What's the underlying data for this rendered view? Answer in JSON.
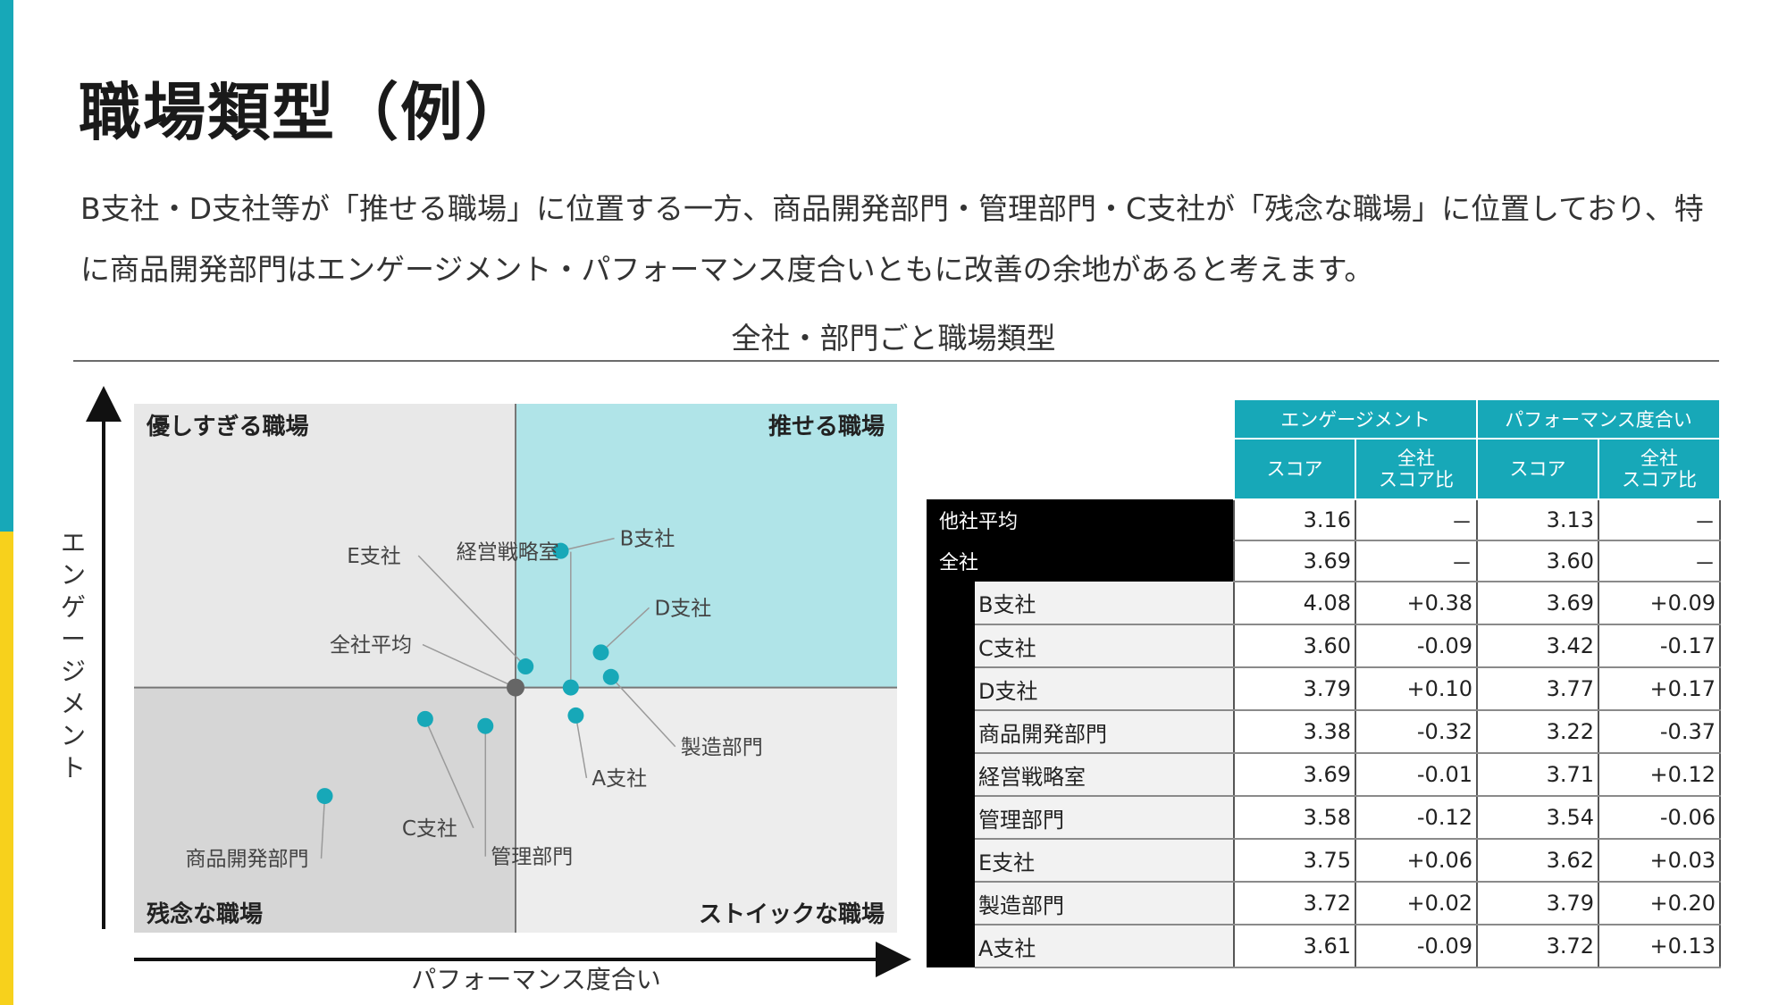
{
  "slide": {
    "title": "職場類型（例）",
    "description_line1": "B支社・D支社等が「推せる職場」に位置する一方、商品開発部門・管理部門・C支社が「残念な職場」に位置しており、特",
    "description_line2": "に商品開発部門はエンゲージメント・パフォーマンス度合いともに改善の余地があると考えます。",
    "section_title": "全社・部門ごと職場類型",
    "accent_colors": {
      "teal": "#17a8b8",
      "yellow": "#f7d11c"
    }
  },
  "chart_data": {
    "type": "scatter",
    "title": "",
    "xlabel": "パフォーマンス度合い",
    "ylabel": "エンゲージメント",
    "ylabel_chars": [
      "エ",
      "ン",
      "ゲ",
      "ー",
      "ジ",
      "メ",
      "ン",
      "ト"
    ],
    "xlim": [
      2.84,
      4.36
    ],
    "ylim": [
      2.99,
      4.5
    ],
    "center": {
      "x": 3.6,
      "y": 3.69
    },
    "quadrants": {
      "top_left": "優しすぎる職場",
      "top_right": "推せる職場",
      "bottom_left": "残念な職場",
      "bottom_right": "ストイックな職場"
    },
    "quadrant_colors": {
      "top_left": "#e8e8e8",
      "top_right": "#b0e4e8",
      "bottom_left": "#d6d6d6",
      "bottom_right": "#ededed"
    },
    "point_color": "#17a8b8",
    "center_color": "#666666",
    "points": [
      {
        "name": "全社平均",
        "x": 3.6,
        "y": 3.69,
        "center": true
      },
      {
        "name": "B支社",
        "x": 3.69,
        "y": 4.08
      },
      {
        "name": "D支社",
        "x": 3.77,
        "y": 3.79
      },
      {
        "name": "C支社",
        "x": 3.42,
        "y": 3.6
      },
      {
        "name": "商品開発部門",
        "x": 3.22,
        "y": 3.38
      },
      {
        "name": "経営戦略室",
        "x": 3.71,
        "y": 3.69
      },
      {
        "name": "管理部門",
        "x": 3.54,
        "y": 3.58
      },
      {
        "name": "E支社",
        "x": 3.62,
        "y": 3.75
      },
      {
        "name": "製造部門",
        "x": 3.79,
        "y": 3.72
      },
      {
        "name": "A支社",
        "x": 3.72,
        "y": 3.61
      }
    ]
  },
  "table": {
    "group_headers": [
      "エンゲージメント",
      "パフォーマンス度合い"
    ],
    "sub_headers": [
      {
        "line1": "スコア",
        "line2": ""
      },
      {
        "line1": "全社",
        "line2": "スコア比"
      },
      {
        "line1": "スコア",
        "line2": ""
      },
      {
        "line1": "全社",
        "line2": "スコア比"
      }
    ],
    "top_rows": [
      {
        "label": "他社平均",
        "values": [
          "3.16",
          "－",
          "3.13",
          "－"
        ]
      },
      {
        "label": "全社",
        "values": [
          "3.69",
          "－",
          "3.60",
          "－"
        ]
      }
    ],
    "rows": [
      {
        "label": "B支社",
        "values": [
          "4.08",
          "+0.38",
          "3.69",
          "+0.09"
        ]
      },
      {
        "label": "C支社",
        "values": [
          "3.60",
          "-0.09",
          "3.42",
          "-0.17"
        ]
      },
      {
        "label": "D支社",
        "values": [
          "3.79",
          "+0.10",
          "3.77",
          "+0.17"
        ]
      },
      {
        "label": "商品開発部門",
        "values": [
          "3.38",
          "-0.32",
          "3.22",
          "-0.37"
        ]
      },
      {
        "label": "経営戦略室",
        "values": [
          "3.69",
          "-0.01",
          "3.71",
          "+0.12"
        ]
      },
      {
        "label": "管理部門",
        "values": [
          "3.58",
          "-0.12",
          "3.54",
          "-0.06"
        ]
      },
      {
        "label": "E支社",
        "values": [
          "3.75",
          "+0.06",
          "3.62",
          "+0.03"
        ]
      },
      {
        "label": "製造部門",
        "values": [
          "3.72",
          "+0.02",
          "3.79",
          "+0.20"
        ]
      },
      {
        "label": "A支社",
        "values": [
          "3.61",
          "-0.09",
          "3.72",
          "+0.13"
        ]
      }
    ]
  }
}
